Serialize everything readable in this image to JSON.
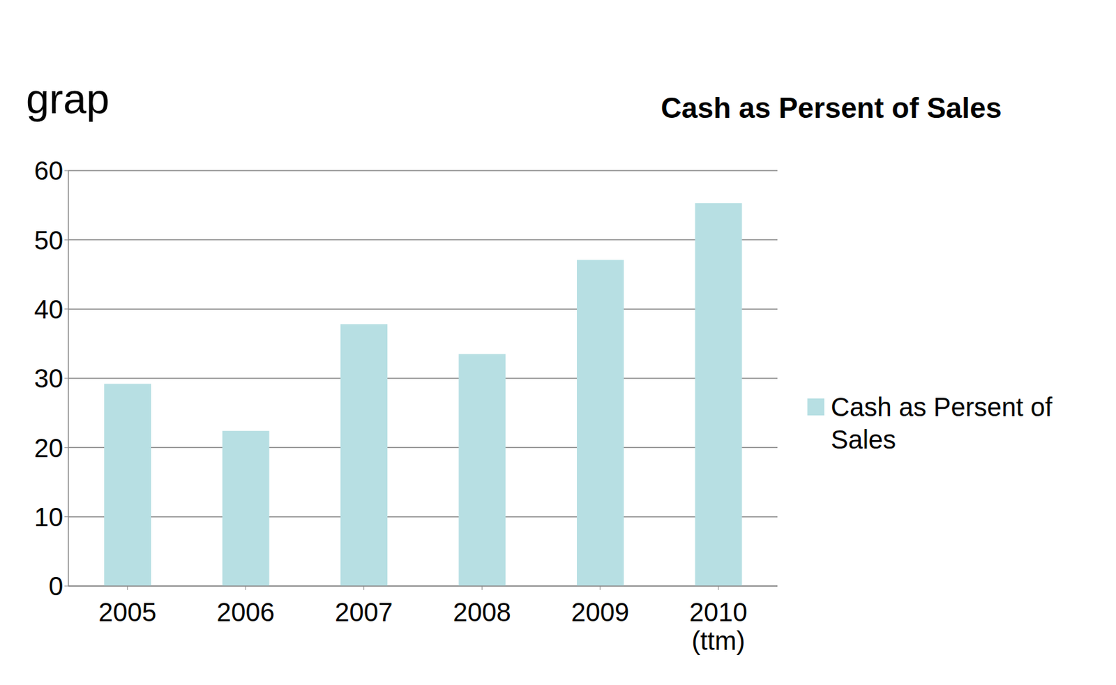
{
  "chart_data": {
    "type": "bar",
    "title": "Cash as Persent of Sales",
    "annotations": [
      "grap"
    ],
    "categories": [
      "2005",
      "2006",
      "2007",
      "2008",
      "2009",
      "2010 (ttm)"
    ],
    "series": [
      {
        "name": "Cash as Persent of Sales",
        "color": "#b7dfe3",
        "values": [
          29.2,
          22.4,
          37.8,
          33.5,
          47.1,
          55.3
        ]
      }
    ],
    "ylim": [
      0,
      60
    ],
    "yticks": [
      0,
      10,
      20,
      30,
      40,
      50,
      60
    ],
    "grid": true,
    "legend": "right"
  }
}
